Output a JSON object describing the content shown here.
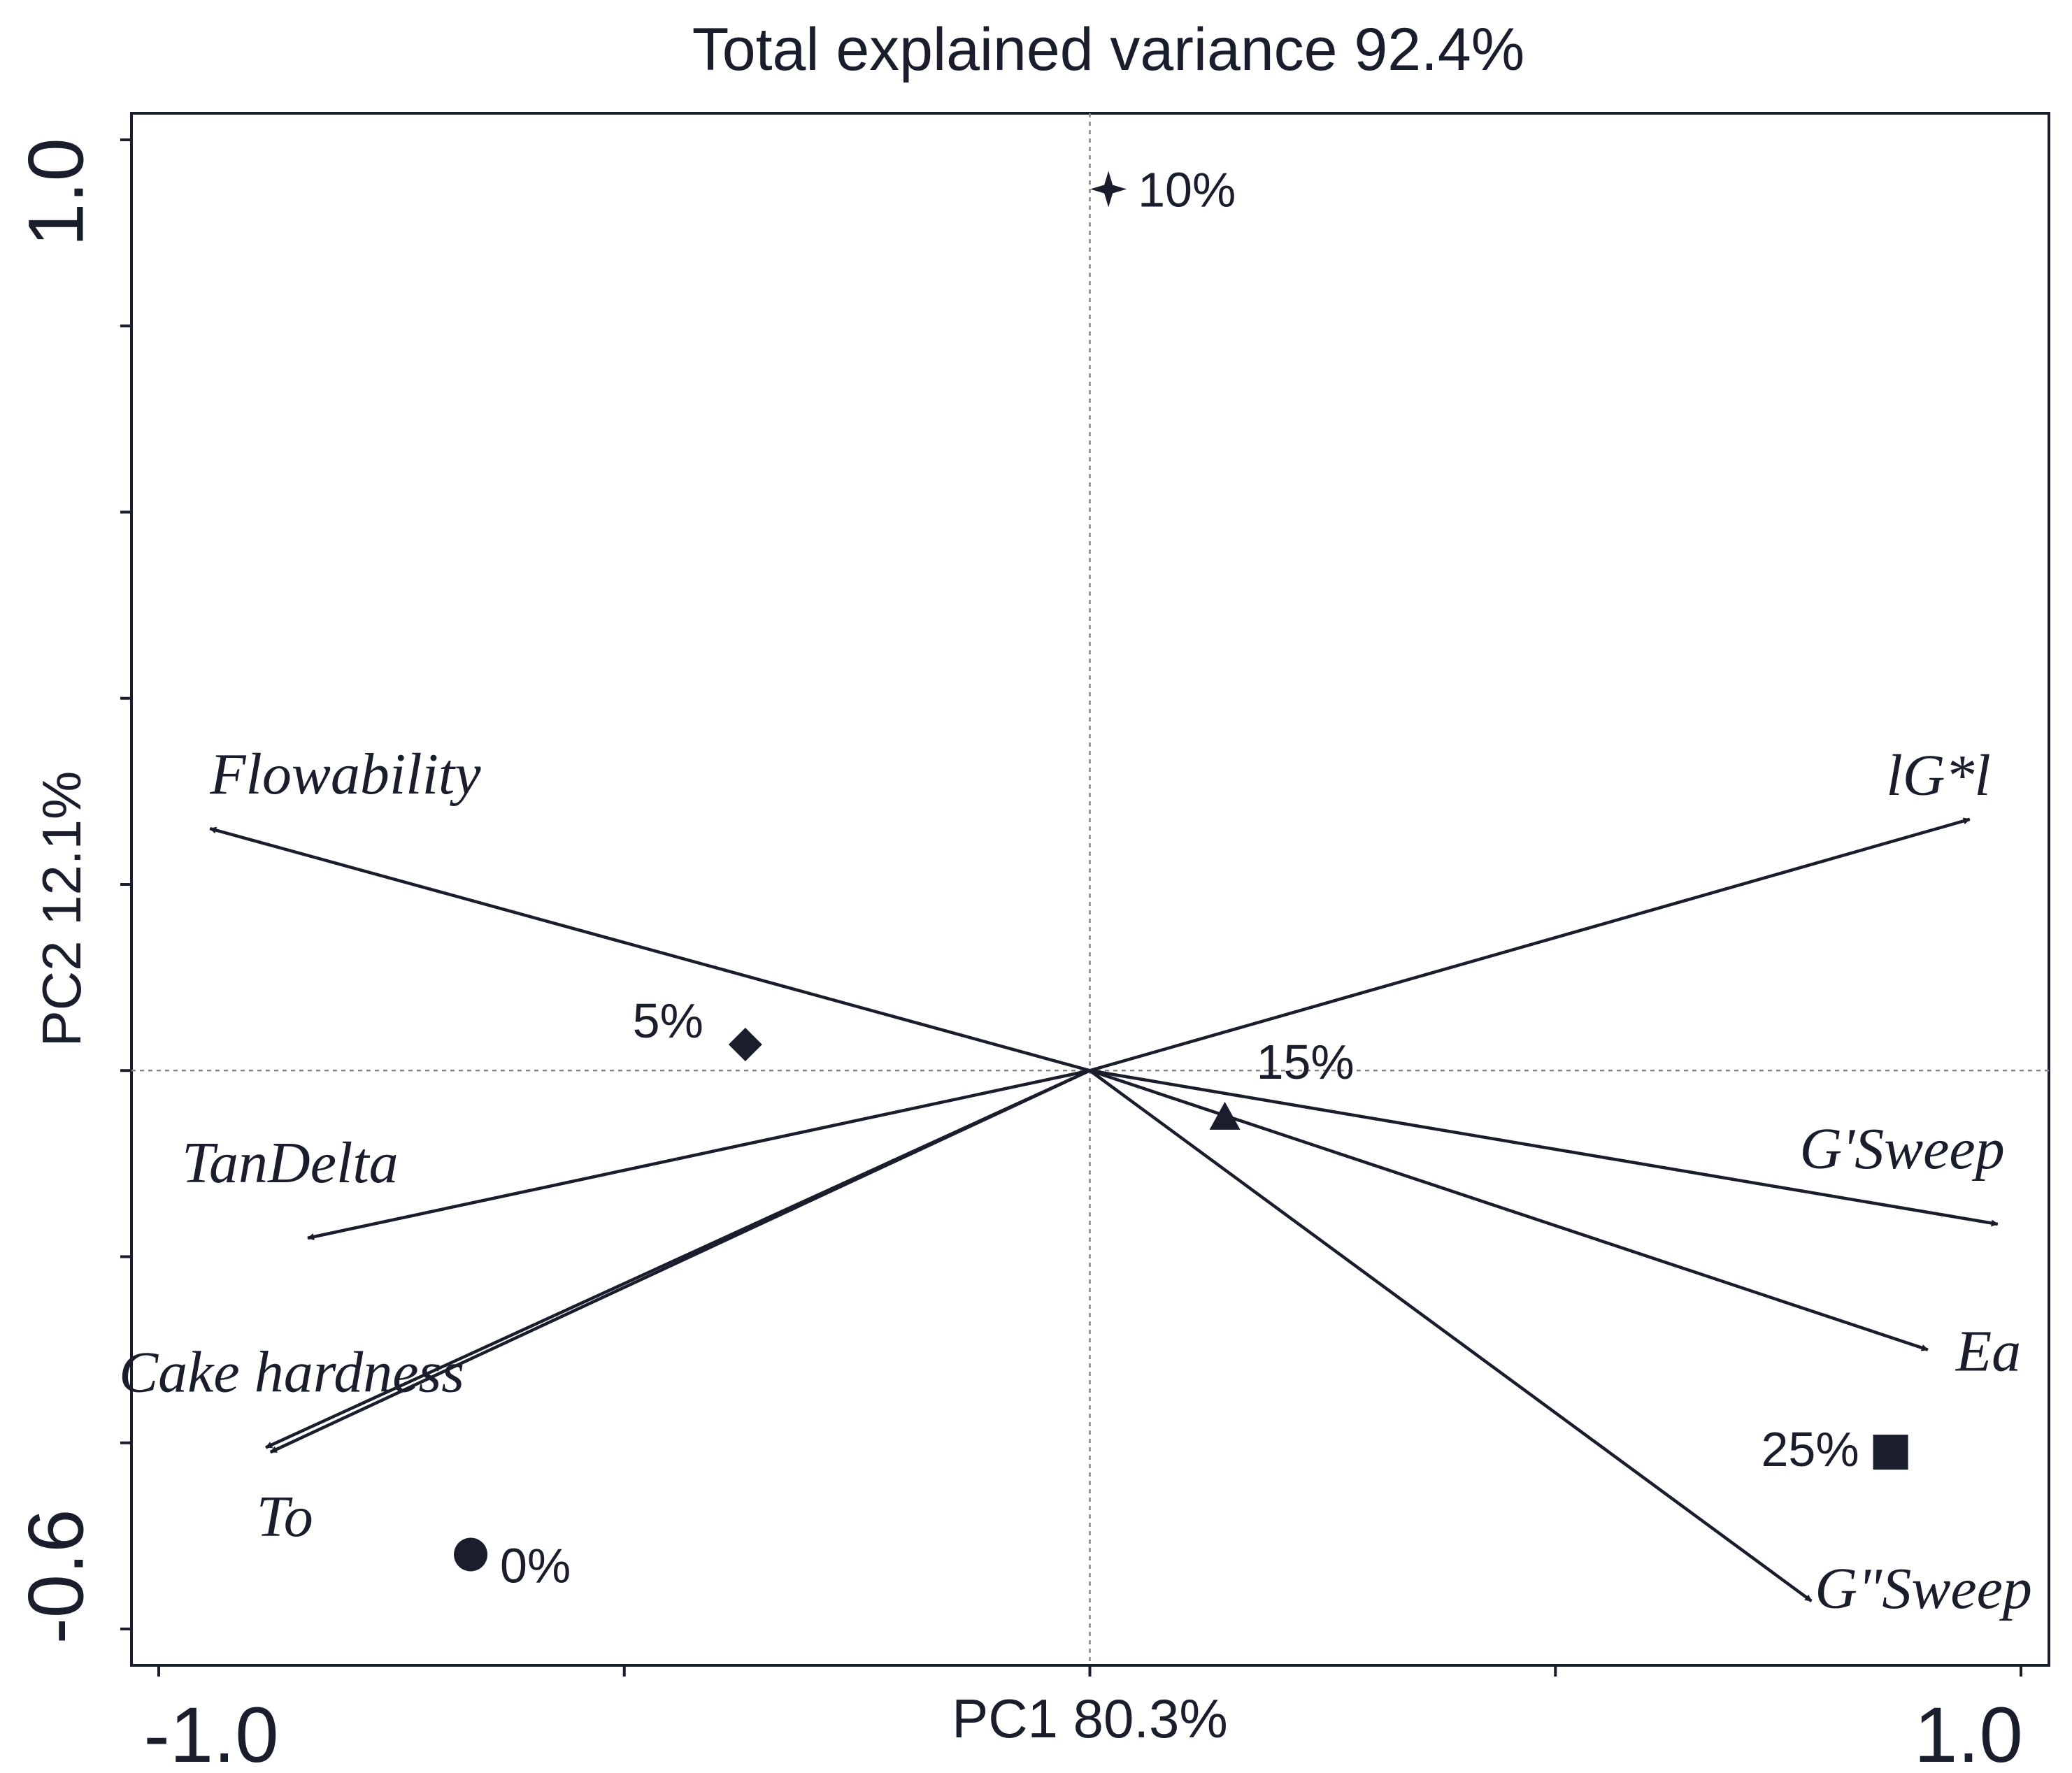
{
  "chart_data": {
    "type": "biplot",
    "title": "Total explained variance 92.4%",
    "xlabel": "PC1 80.3%",
    "ylabel": "PC2 12.1%",
    "xlim": [
      -1.0,
      1.0
    ],
    "ylim": [
      -0.6,
      1.0
    ],
    "x_tick_labels": [
      {
        "value": -1.0,
        "label": "-1.0"
      },
      {
        "value": 1.0,
        "label": "1.0"
      }
    ],
    "y_tick_labels": [
      {
        "value": -0.6,
        "label": "-0.6"
      },
      {
        "value": 1.0,
        "label": "1.0"
      }
    ],
    "x_ticks": [
      -1.0,
      -0.5,
      0.0,
      0.5,
      1.0
    ],
    "y_ticks": [
      -0.6,
      -0.4,
      -0.2,
      0.0,
      0.2,
      0.4,
      0.6,
      0.8,
      1.0
    ],
    "reference_lines": {
      "x": 0.0,
      "y": 0.0,
      "style": "dotted"
    },
    "samples": [
      {
        "label": "0%",
        "marker": "circle",
        "x": -0.665,
        "y": -0.52
      },
      {
        "label": "5%",
        "marker": "diamond",
        "x": -0.37,
        "y": 0.028
      },
      {
        "label": "10%",
        "marker": "star",
        "x": 0.02,
        "y": 0.947
      },
      {
        "label": "15%",
        "marker": "triangle",
        "x": 0.145,
        "y": -0.05
      },
      {
        "label": "25%",
        "marker": "square",
        "x": 0.86,
        "y": -0.41
      }
    ],
    "loadings": [
      {
        "label": "Flowability",
        "x": -0.945,
        "y": 0.26
      },
      {
        "label": "lG*l",
        "x": 0.945,
        "y": 0.27
      },
      {
        "label": "TanDelta",
        "x": -0.84,
        "y": -0.18
      },
      {
        "label": "Cake hardness",
        "x": -0.885,
        "y": -0.405
      },
      {
        "label": "To",
        "x": -0.88,
        "y": -0.41
      },
      {
        "label": "G'Sweep",
        "x": 0.975,
        "y": -0.165
      },
      {
        "label": "Ea",
        "x": 0.9,
        "y": -0.3
      },
      {
        "label": "G\"Sweep",
        "x": 0.775,
        "y": -0.57
      }
    ]
  }
}
